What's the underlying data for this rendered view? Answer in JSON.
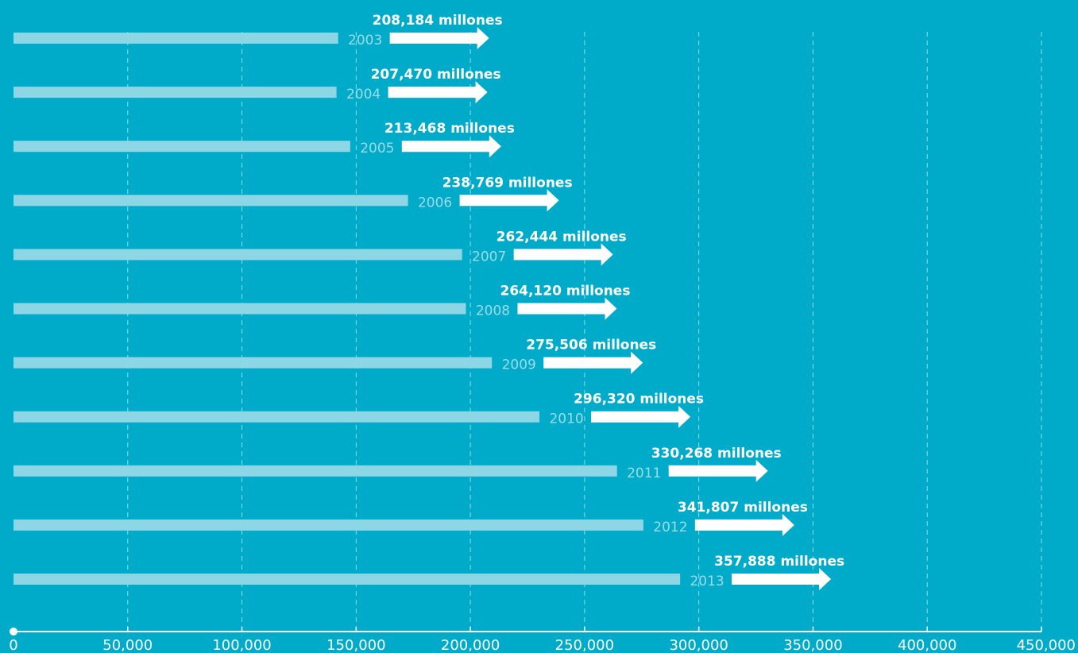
{
  "chart_data": {
    "type": "bar",
    "orientation": "horizontal",
    "unit_suffix": "millones",
    "categories": [
      "2003",
      "2004",
      "2005",
      "2006",
      "2007",
      "2008",
      "2009",
      "2010",
      "2011",
      "2012",
      "2013"
    ],
    "values": [
      208184,
      207470,
      213468,
      238769,
      262444,
      264120,
      275506,
      296320,
      330268,
      341807,
      357888
    ],
    "value_labels": [
      "208,184 millones",
      "207,470 millones",
      "213,468 millones",
      "238,769 millones",
      "262,444 millones",
      "264,120 millones",
      "275,506 millones",
      "296,320 millones",
      "330,268 millones",
      "341,807 millones",
      "357,888 millones"
    ],
    "xlim": [
      0,
      450000
    ],
    "x_ticks": [
      0,
      50000,
      100000,
      150000,
      200000,
      250000,
      300000,
      350000,
      400000,
      450000
    ],
    "x_tick_labels": [
      "0",
      "50,000",
      "100,000",
      "150,000",
      "200,000",
      "250,000",
      "300,000",
      "350,000",
      "400,000",
      "450,000"
    ],
    "grid": "vertical dashed",
    "colors": {
      "background": "#00abc9",
      "bar": "#8dd6e6",
      "arrow": "#ffffff",
      "year_label": "#9ddbe8",
      "value_label": "#ffffff",
      "axis": "#ffffff",
      "grid": "#8fdcec"
    }
  }
}
